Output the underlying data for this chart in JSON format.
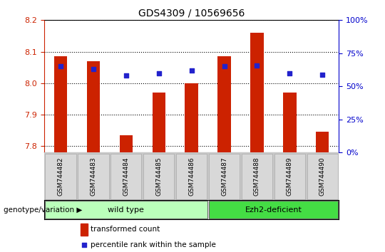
{
  "title": "GDS4309 / 10569656",
  "samples": [
    "GSM744482",
    "GSM744483",
    "GSM744484",
    "GSM744485",
    "GSM744486",
    "GSM744487",
    "GSM744488",
    "GSM744489",
    "GSM744490"
  ],
  "transformed_count": [
    8.085,
    8.07,
    7.835,
    7.97,
    8.0,
    8.085,
    8.16,
    7.97,
    7.845
  ],
  "percentile_rank": [
    65,
    63,
    58,
    60,
    62,
    65,
    66,
    60,
    59
  ],
  "ylim_left": [
    7.78,
    8.2
  ],
  "ylim_right": [
    0,
    100
  ],
  "yticks_left": [
    7.8,
    7.9,
    8.0,
    8.1,
    8.2
  ],
  "yticks_right": [
    0,
    25,
    50,
    75,
    100
  ],
  "bar_color": "#cc2200",
  "dot_color": "#2222cc",
  "group1_label": "wild type",
  "group1_count": 5,
  "group1_color": "#bbffbb",
  "group2_label": "Ezh2-deficient",
  "group2_count": 4,
  "group2_color": "#44dd44",
  "group_prefix": "genotype/variation",
  "legend_bar_label": "transformed count",
  "legend_dot_label": "percentile rank within the sample",
  "left_color": "#cc2200",
  "right_color": "#0000cc"
}
